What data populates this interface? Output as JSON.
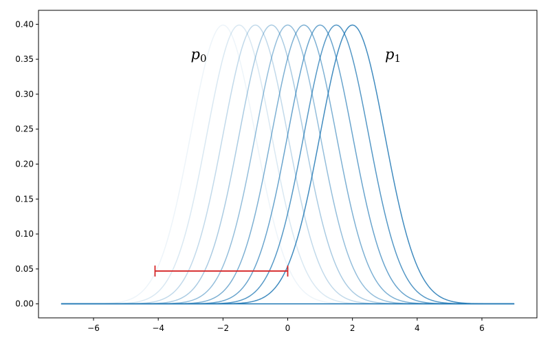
{
  "chart_data": {
    "type": "line",
    "title": "",
    "xlabel": "",
    "ylabel": "",
    "xlim": [
      -7.7,
      7.7
    ],
    "ylim": [
      -0.02,
      0.42
    ],
    "xticks": [
      -6,
      -4,
      -2,
      0,
      2,
      4,
      6
    ],
    "xtick_labels": [
      "−6",
      "−4",
      "−2",
      "0",
      "2",
      "4",
      "6"
    ],
    "yticks": [
      0.0,
      0.05,
      0.1,
      0.15,
      0.2,
      0.25,
      0.3,
      0.35,
      0.4
    ],
    "ytick_labels": [
      "0.00",
      "0.05",
      "0.10",
      "0.15",
      "0.20",
      "0.25",
      "0.30",
      "0.35",
      "0.40"
    ],
    "grid": false,
    "curve_domain": [
      -7,
      7
    ],
    "curve_sigma": 1,
    "series_color": "#1f77b4",
    "series": [
      {
        "mean": -2.0,
        "opacity": 0.08
      },
      {
        "mean": -1.5,
        "opacity": 0.17
      },
      {
        "mean": -1.0,
        "opacity": 0.28
      },
      {
        "mean": -0.5,
        "opacity": 0.38
      },
      {
        "mean": 0.0,
        "opacity": 0.48
      },
      {
        "mean": 0.5,
        "opacity": 0.58
      },
      {
        "mean": 1.0,
        "opacity": 0.67
      },
      {
        "mean": 1.5,
        "opacity": 0.76
      },
      {
        "mean": 2.0,
        "opacity": 0.85
      }
    ],
    "baseline": {
      "x": [
        -7,
        7
      ],
      "y": 0.0,
      "color": "#1f77b4"
    },
    "annotations": [
      {
        "base": "p",
        "sub": "0",
        "x": -2.75,
        "y": 0.35
      },
      {
        "base": "p",
        "sub": "1",
        "x": 3.25,
        "y": 0.35
      }
    ],
    "interval_bar": {
      "x_start": -4.1,
      "x_end": 0.0,
      "y": 0.047,
      "color": "#d62728"
    }
  }
}
